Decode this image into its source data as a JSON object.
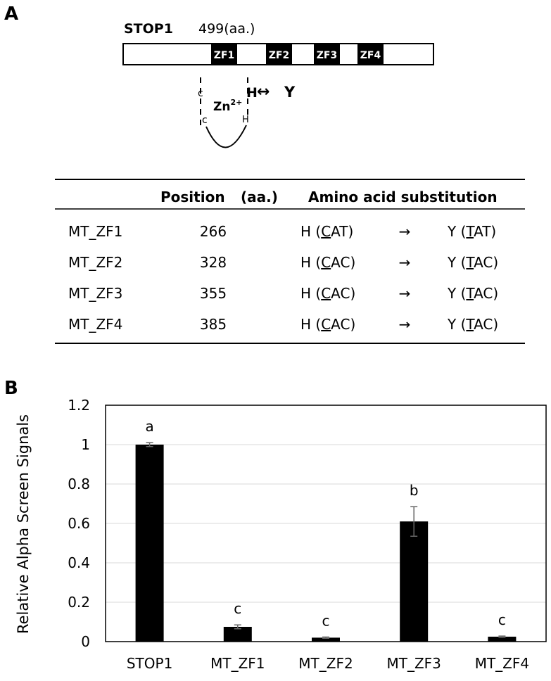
{
  "panel_labels": [
    "A",
    "B"
  ],
  "diagram": {
    "protein": "STOP1",
    "length": "499(aa.)",
    "domains": [
      "ZF1",
      "ZF2",
      "ZF3",
      "ZF4"
    ],
    "cys_1": "c",
    "cys_2": "c",
    "zinc": "Zn",
    "zinc_charge": "2+",
    "his_1": "H",
    "his_2": "H",
    "arrow": "↔",
    "substitute": "Y"
  },
  "table": {
    "header": [
      "Position",
      "(aa.)",
      "Amino acid substitution"
    ],
    "rows": [
      {
        "name": "MT_ZF1",
        "position": "266",
        "from": [
          "H (",
          "C",
          "AT)"
        ],
        "arrow": "→",
        "to": [
          "Y (",
          "T",
          "AT)"
        ]
      },
      {
        "name": "MT_ZF2",
        "position": "328",
        "from": [
          "H (",
          "C",
          "AC)"
        ],
        "arrow": "→",
        "to": [
          "Y (",
          "T",
          "AC)"
        ]
      },
      {
        "name": "MT_ZF3",
        "position": "355",
        "from": [
          "H (",
          "C",
          "AC)"
        ],
        "arrow": "→",
        "to": [
          "Y (",
          "T",
          "AC)"
        ]
      },
      {
        "name": "MT_ZF4",
        "position": "385",
        "from": [
          "H (",
          "C",
          "AC)"
        ],
        "arrow": "→",
        "to": [
          "Y (",
          "T",
          "AC)"
        ]
      }
    ]
  },
  "chart_data": {
    "type": "bar",
    "ylabel": "Relative Alpha Screen Signals",
    "categories": [
      "STOP1",
      "MT_ZF1",
      "MT_ZF2",
      "MT_ZF3",
      "MT_ZF4"
    ],
    "values": [
      1.0,
      0.075,
      0.02,
      0.61,
      0.025
    ],
    "errors": [
      0.01,
      0.01,
      0.003,
      0.075,
      0.003
    ],
    "annotations": [
      "a",
      "c",
      "c",
      "b",
      "c"
    ],
    "color": "#000000",
    "ylim": [
      0,
      1.2
    ],
    "yticks": [
      0,
      0.2,
      0.4,
      0.6,
      0.8,
      1,
      1.2
    ],
    "grid": true
  }
}
